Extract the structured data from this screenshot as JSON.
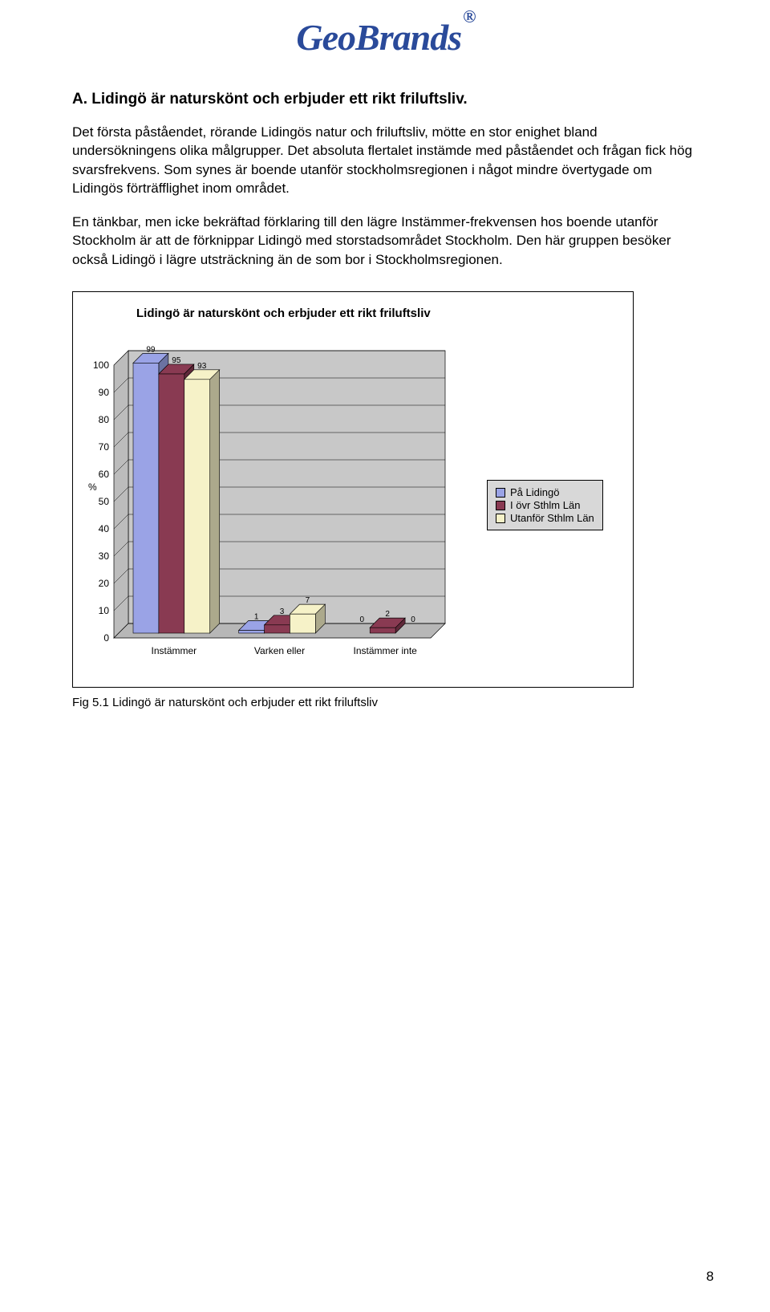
{
  "logo": {
    "text": "GeoBrands",
    "reg": "®",
    "color": "#2a4a9a"
  },
  "heading": "A. Lidingö är naturskönt och erbjuder ett rikt friluftsliv.",
  "paragraphs": [
    "Det första påståendet, rörande Lidingös natur och friluftsliv, mötte en stor enighet bland undersökningens olika målgrupper. Det absoluta flertalet instämde med påståendet och frågan fick hög svarsfrekvens. Som synes är boende utanför stockholmsregionen i något mindre övertygade om Lidingös förträfflighet inom området.",
    "En tänkbar, men icke bekräftad förklaring till den lägre Instämmer-frekvensen hos boende utanför Stockholm är att de förknippar Lidingö med storstadsområdet Stockholm. Den här gruppen besöker också Lidingö i lägre utsträckning än de som bor i Stockholmsregionen."
  ],
  "chart": {
    "type": "bar-3d",
    "title": "Lidingö är naturskönt och erbjuder ett rikt friluftsliv",
    "ylabel": "%",
    "ylim": [
      0,
      100
    ],
    "ytick_step": 10,
    "yticks": [
      0,
      10,
      20,
      30,
      40,
      50,
      60,
      70,
      80,
      90,
      100
    ],
    "categories": [
      "Instämmer",
      "Varken eller",
      "Instämmer inte"
    ],
    "series": [
      {
        "name": "På Lidingö",
        "color": "#9aa3e6",
        "stroke": "#000000",
        "values": [
          99,
          1,
          0
        ]
      },
      {
        "name": "I övr Sthlm Län",
        "color": "#893a52",
        "stroke": "#000000",
        "values": [
          95,
          3,
          2
        ]
      },
      {
        "name": "Utanför Sthlm Län",
        "color": "#f6f2c8",
        "stroke": "#000000",
        "values": [
          93,
          7,
          0
        ]
      }
    ],
    "plot_bg": "#c8c8c8",
    "floor_bg": "#b7b7b7",
    "tick_fontsize": 12,
    "label_fontsize": 12,
    "value_fontsize": 10,
    "legend_bg": "#d8d8d8"
  },
  "caption": "Fig 5.1 Lidingö är naturskönt och erbjuder ett rikt friluftsliv",
  "page_number": "8"
}
